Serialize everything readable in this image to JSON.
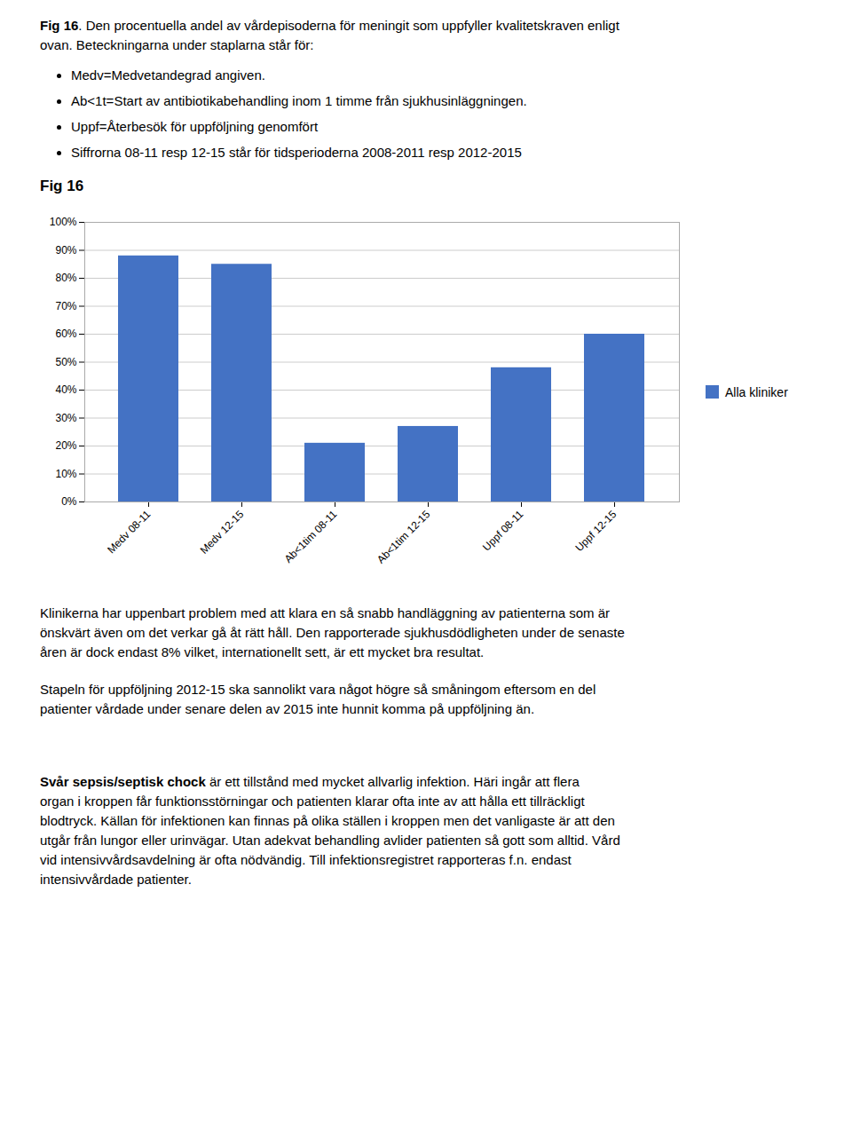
{
  "chart_data": {
    "type": "bar",
    "title": "Fig 16",
    "subtitle": {
      "bold": "Fig 16",
      "lines": [
        ". Den procentuella andel av vårdepisoderna för meningit som uppfyller kvalitetskraven enligt",
        "ovan. Beteckningarna under staplarna står för:"
      ],
      "bullets": [
        "Medv=Medvetandegrad angiven.",
        "Ab<1t=Start av antibiotikabehandling inom 1 timme från sjukhusinläggningen.",
        "Uppf=Återbesök för uppföljning genomfört",
        "Siffrorna 08-11 resp 12-15 står för tidsperioderna 2008-2011 resp 2012-2015"
      ]
    },
    "categories": [
      "Medv 08-11",
      "Medv 12-15",
      "Ab<1tim 08-11",
      "Ab<1tim 12-15",
      "Uppf 08-11",
      "Uppf 12-15"
    ],
    "series": [
      {
        "name": "Alla kliniker",
        "color": "#4472C4",
        "values": [
          88,
          85,
          21,
          27,
          48,
          60
        ]
      }
    ],
    "ylim": [
      0,
      100
    ],
    "yticks": [
      {
        "value": 0,
        "label": "0%"
      },
      {
        "value": 10,
        "label": "10%"
      },
      {
        "value": 20,
        "label": "20%"
      },
      {
        "value": 30,
        "label": "30%"
      },
      {
        "value": 40,
        "label": "40%"
      },
      {
        "value": 50,
        "label": "50%"
      },
      {
        "value": 60,
        "label": "60%"
      },
      {
        "value": 70,
        "label": "70%"
      },
      {
        "value": 80,
        "label": "80%"
      },
      {
        "value": 90,
        "label": "90%"
      },
      {
        "value": 100,
        "label": "100%"
      }
    ],
    "grid": true,
    "legend": "right",
    "annotations": [
      {
        "lines": [
          "Klinikerna har uppenbart problem med att klara en så snabb handläggning av patienterna som är",
          "önskvärt även om det verkar gå åt rätt håll. Den rapporterade sjukhusdödligheten under de senaste",
          "åren är dock endast 8% vilket, internationellt sett, är ett mycket bra resultat."
        ]
      },
      {
        "lines": [
          "Stapeln för uppföljning 2012-15 ska sannolikt vara något högre så småningom eftersom en del",
          "patienter vårdade under senare delen av 2015 inte hunnit komma på uppföljning än."
        ]
      },
      {
        "bold": "Svår sepsis/septisk chock",
        "lines": [
          " är ett tillstånd med mycket allvarlig infektion. Häri ingår att flera",
          "organ i kroppen får funktionsstörningar och patienten klarar ofta inte av att hålla ett tillräckligt",
          "blodtryck. Källan för infektionen kan finnas på olika ställen i kroppen men det vanligaste är att den",
          "utgår från lungor eller urinvägar. Utan adekvat behandling avlider patienten så gott som alltid. Vård",
          "vid intensivvårdsavdelning är ofta nödvändig. Till infektionsregistret rapporteras f.n. endast",
          "intensivvårdade patienter."
        ]
      }
    ]
  }
}
